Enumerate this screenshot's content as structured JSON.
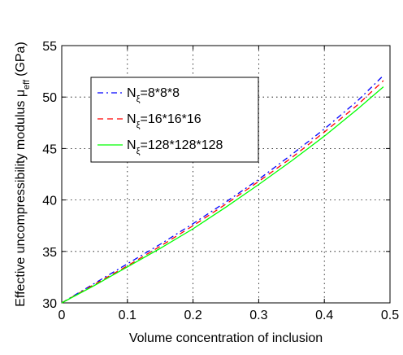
{
  "chart_data": {
    "type": "line",
    "xlabel": "Volume concentration of inclusion",
    "ylabel": "Effective uncompressibility modulus μ",
    "ylabel_sub": "eff",
    "ylabel_unit": "(GPa)",
    "xlim": [
      0,
      0.5
    ],
    "ylim": [
      30,
      55
    ],
    "xticks": [
      "0",
      "0.1",
      "0.2",
      "0.3",
      "0.4",
      "0.5"
    ],
    "yticks": [
      "30",
      "35",
      "40",
      "45",
      "50",
      "55"
    ],
    "grid": true,
    "legend_position": "top-left",
    "series": [
      {
        "name": "N",
        "name_sub": "ξ",
        "name_rest": "=8*8*8",
        "color": "#0000ff",
        "style": "dashdot",
        "x": [
          0,
          0.05,
          0.1,
          0.15,
          0.2,
          0.25,
          0.3,
          0.35,
          0.4,
          0.45,
          0.49
        ],
        "y": [
          30.0,
          31.9,
          33.8,
          35.7,
          37.7,
          39.8,
          42.0,
          44.4,
          46.9,
          49.6,
          52.1
        ]
      },
      {
        "name": "N",
        "name_sub": "ξ",
        "name_rest": "=16*16*16",
        "color": "#ff0000",
        "style": "dashed",
        "x": [
          0,
          0.05,
          0.1,
          0.15,
          0.2,
          0.25,
          0.3,
          0.35,
          0.4,
          0.45,
          0.49
        ],
        "y": [
          30.0,
          31.8,
          33.6,
          35.5,
          37.5,
          39.6,
          41.8,
          44.1,
          46.6,
          49.2,
          51.6
        ]
      },
      {
        "name": "N",
        "name_sub": "ξ",
        "name_rest": "=128*128*128",
        "color": "#00ff00",
        "style": "solid",
        "x": [
          0,
          0.05,
          0.1,
          0.15,
          0.2,
          0.25,
          0.3,
          0.35,
          0.4,
          0.45,
          0.49
        ],
        "y": [
          30.0,
          31.7,
          33.5,
          35.3,
          37.2,
          39.3,
          41.5,
          43.8,
          46.2,
          48.8,
          51.0
        ]
      }
    ]
  }
}
